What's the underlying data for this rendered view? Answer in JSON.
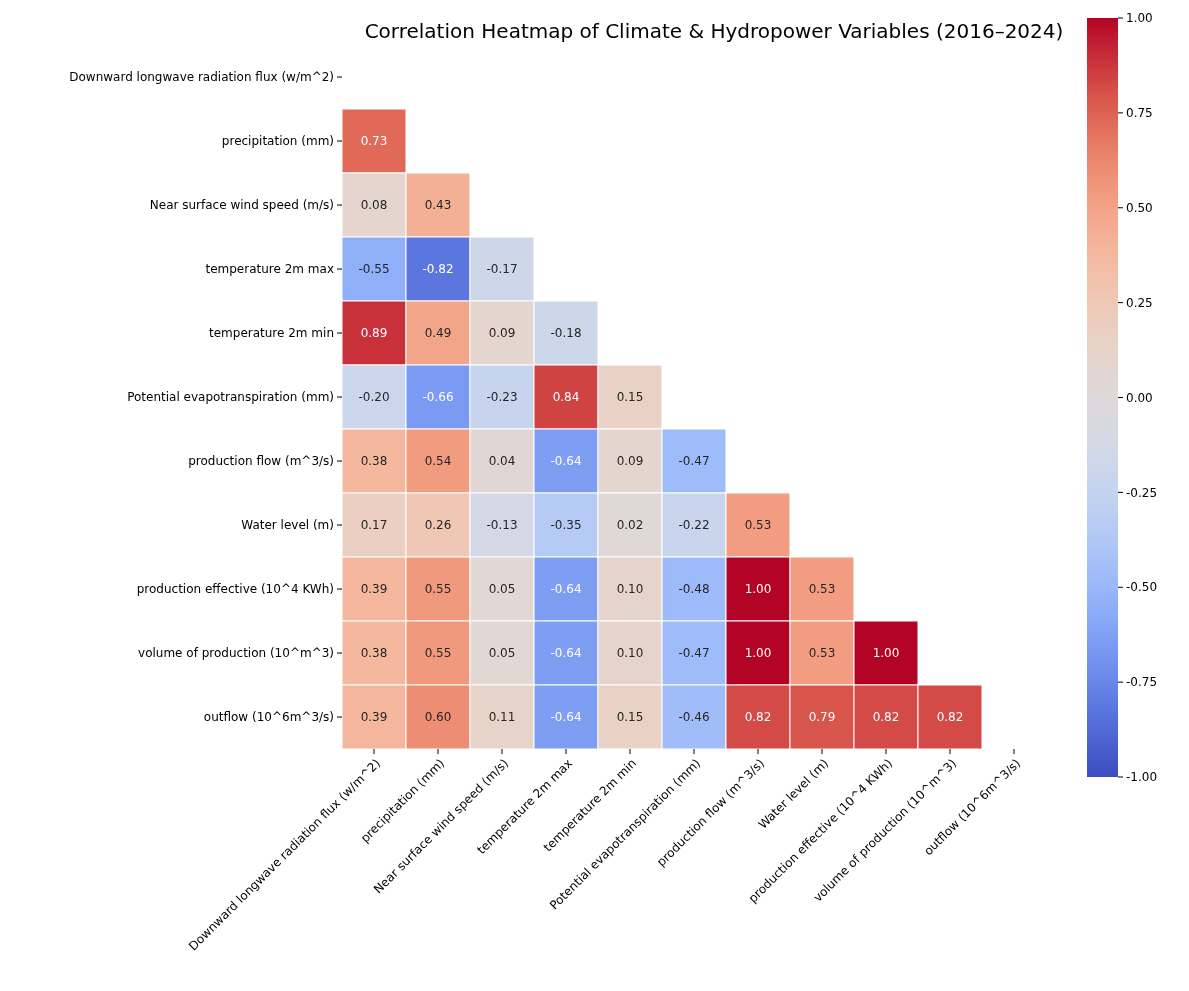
{
  "chart_data": {
    "type": "heatmap",
    "title": "Correlation Heatmap of Climate & Hydropower Variables (2016–2024)",
    "categories": [
      "Downward longwave radiation flux (w/m^2)",
      "precipitation (mm)",
      "Near surface wind speed (m/s)",
      "temperature 2m max",
      "temperature  2m min",
      "Potential evapotranspiration (mm)",
      "production flow (m^3/s)",
      "Water level (m)",
      "production effective (10^4 KWh)",
      "volume of production (10^m^3)",
      "outflow (10^6m^3/s)"
    ],
    "y_categories": [
      "Downward longwave radiation flux (w/m^2)",
      "precipitation (mm)",
      "Near surface wind speed (m/s)",
      "temperature 2m max",
      "temperature  2m min",
      "Potential evapotranspiration (mm)",
      "production flow (m^3/s)",
      "Water level (m)",
      "production effective (10^4 KWh)",
      "volume of production (10^m^3)",
      "outflow (10^6m^3/s)"
    ],
    "cells": [
      [
        null,
        null,
        null,
        null,
        null,
        null,
        null,
        null,
        null,
        null,
        null
      ],
      [
        0.73,
        null,
        null,
        null,
        null,
        null,
        null,
        null,
        null,
        null,
        null
      ],
      [
        0.08,
        0.43,
        null,
        null,
        null,
        null,
        null,
        null,
        null,
        null,
        null
      ],
      [
        -0.55,
        -0.82,
        -0.17,
        null,
        null,
        null,
        null,
        null,
        null,
        null,
        null
      ],
      [
        0.89,
        0.49,
        0.09,
        -0.18,
        null,
        null,
        null,
        null,
        null,
        null,
        null
      ],
      [
        -0.2,
        -0.66,
        -0.23,
        0.84,
        0.15,
        null,
        null,
        null,
        null,
        null,
        null
      ],
      [
        0.38,
        0.54,
        0.04,
        -0.64,
        0.09,
        -0.47,
        null,
        null,
        null,
        null,
        null
      ],
      [
        0.17,
        0.26,
        -0.13,
        -0.35,
        0.02,
        -0.22,
        0.53,
        null,
        null,
        null,
        null
      ],
      [
        0.39,
        0.55,
        0.05,
        -0.64,
        0.1,
        -0.48,
        1.0,
        0.53,
        null,
        null,
        null
      ],
      [
        0.38,
        0.55,
        0.05,
        -0.64,
        0.1,
        -0.47,
        1.0,
        0.53,
        1.0,
        null,
        null
      ],
      [
        0.39,
        0.6,
        0.11,
        -0.64,
        0.15,
        -0.46,
        0.82,
        0.79,
        0.82,
        0.82,
        null
      ]
    ],
    "cell_labels": [
      [
        null,
        null,
        null,
        null,
        null,
        null,
        null,
        null,
        null,
        null,
        null
      ],
      [
        "0.73",
        null,
        null,
        null,
        null,
        null,
        null,
        null,
        null,
        null,
        null
      ],
      [
        "0.08",
        "0.43",
        null,
        null,
        null,
        null,
        null,
        null,
        null,
        null,
        null
      ],
      [
        "-0.55",
        "-0.82",
        "-0.17",
        null,
        null,
        null,
        null,
        null,
        null,
        null,
        null
      ],
      [
        "0.89",
        "0.49",
        "0.09",
        "-0.18",
        null,
        null,
        null,
        null,
        null,
        null,
        null
      ],
      [
        "-0.20",
        "-0.66",
        "-0.23",
        "0.84",
        "0.15",
        null,
        null,
        null,
        null,
        null,
        null
      ],
      [
        "0.38",
        "0.54",
        "0.04",
        "-0.64",
        "0.09",
        "-0.47",
        null,
        null,
        null,
        null,
        null
      ],
      [
        "0.17",
        "0.26",
        "-0.13",
        "-0.35",
        "0.02",
        "-0.22",
        "0.53",
        null,
        null,
        null,
        null
      ],
      [
        "0.39",
        "0.55",
        "0.05",
        "-0.64",
        "0.10",
        "-0.48",
        "1.00",
        "0.53",
        null,
        null,
        null
      ],
      [
        "0.38",
        "0.55",
        "0.05",
        "-0.64",
        "0.10",
        "-0.47",
        "1.00",
        "0.53",
        "1.00",
        null,
        null
      ],
      [
        "0.39",
        "0.60",
        "0.11",
        "-0.64",
        "0.15",
        "-0.46",
        "0.82",
        "0.79",
        "0.82",
        "0.82",
        null
      ]
    ],
    "data_labels": true,
    "clim": [
      -1,
      1
    ],
    "cticks": [
      {
        "value": -1,
        "label": "-1.00"
      },
      {
        "value": -0.75,
        "label": "-0.75"
      },
      {
        "value": -0.5,
        "label": "-0.50"
      },
      {
        "value": -0.25,
        "label": "-0.25"
      },
      {
        "value": 0,
        "label": "0.00"
      },
      {
        "value": 0.25,
        "label": "0.25"
      },
      {
        "value": 0.5,
        "label": "0.50"
      },
      {
        "value": 0.75,
        "label": "0.75"
      },
      {
        "value": 1,
        "label": "1.00"
      }
    ]
  }
}
